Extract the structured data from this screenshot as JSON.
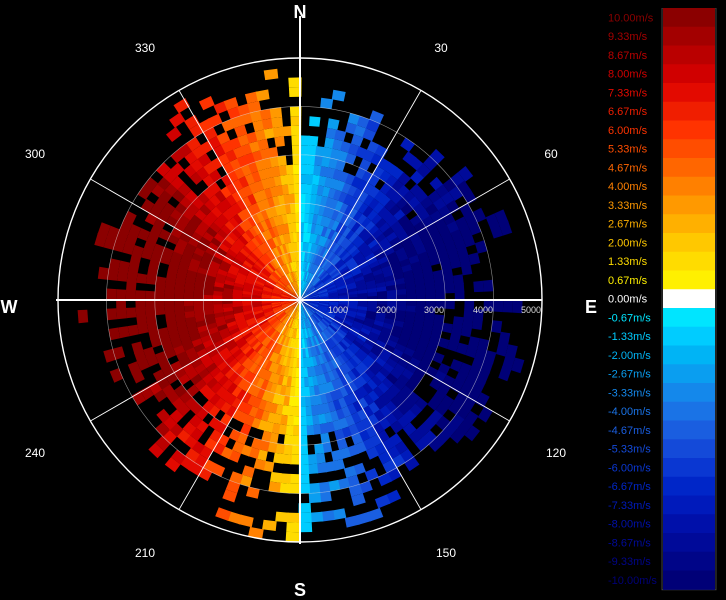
{
  "compass": {
    "north": "N",
    "east": "E",
    "south": "S",
    "west": "W"
  },
  "angle_labels": [
    "30",
    "60",
    "120",
    "150",
    "210",
    "240",
    "300",
    "330"
  ],
  "range_labels": [
    "1000",
    "2000",
    "3000",
    "4000",
    "5000"
  ],
  "chart_data": {
    "type": "polar-heatmap",
    "title": "",
    "max_range": 5000,
    "range_ticks": [
      1000,
      2000,
      3000,
      4000,
      5000
    ],
    "angle_ticks": [
      30,
      60,
      120,
      150,
      210,
      240,
      300,
      330
    ],
    "grid": true,
    "legend_position": "right",
    "value_unit": "m/s",
    "value_range": [
      -10.0,
      10.0
    ],
    "colorscale": [
      {
        "label": "10.00m/s",
        "value": 10.0,
        "color": "#8b0000"
      },
      {
        "label": "9.33m/s",
        "value": 9.33,
        "color": "#a30000"
      },
      {
        "label": "8.67m/s",
        "value": 8.67,
        "color": "#ba0000"
      },
      {
        "label": "8.00m/s",
        "value": 8.0,
        "color": "#d00000"
      },
      {
        "label": "7.33m/s",
        "value": 7.33,
        "color": "#e30a00"
      },
      {
        "label": "6.67m/s",
        "value": 6.67,
        "color": "#f01e00"
      },
      {
        "label": "6.00m/s",
        "value": 6.0,
        "color": "#ff3300"
      },
      {
        "label": "5.33m/s",
        "value": 5.33,
        "color": "#ff4d00"
      },
      {
        "label": "4.67m/s",
        "value": 4.67,
        "color": "#ff6600"
      },
      {
        "label": "4.00m/s",
        "value": 4.0,
        "color": "#ff8000"
      },
      {
        "label": "3.33m/s",
        "value": 3.33,
        "color": "#ff9900"
      },
      {
        "label": "2.67m/s",
        "value": 2.67,
        "color": "#ffb000"
      },
      {
        "label": "2.00m/s",
        "value": 2.0,
        "color": "#ffc800"
      },
      {
        "label": "1.33m/s",
        "value": 1.33,
        "color": "#ffdc00"
      },
      {
        "label": "0.67m/s",
        "value": 0.67,
        "color": "#fff000"
      },
      {
        "label": "0.00m/s",
        "value": 0.0,
        "color": "#ffffff"
      },
      {
        "label": "-0.67m/s",
        "value": -0.67,
        "color": "#00e5ff"
      },
      {
        "label": "-1.33m/s",
        "value": -1.33,
        "color": "#00ccff"
      },
      {
        "label": "-2.00m/s",
        "value": -2.0,
        "color": "#00b4f5"
      },
      {
        "label": "-2.67m/s",
        "value": -2.67,
        "color": "#0a9ef0"
      },
      {
        "label": "-3.33m/s",
        "value": -3.33,
        "color": "#1488eb"
      },
      {
        "label": "-4.00m/s",
        "value": -4.0,
        "color": "#1a73e6"
      },
      {
        "label": "-4.67m/s",
        "value": -4.67,
        "color": "#1a5ee0"
      },
      {
        "label": "-5.33m/s",
        "value": -5.33,
        "color": "#144ad9"
      },
      {
        "label": "-6.00m/s",
        "value": -6.0,
        "color": "#0a37d2"
      },
      {
        "label": "-6.67m/s",
        "value": -6.67,
        "color": "#0026c8"
      },
      {
        "label": "-7.33m/s",
        "value": -7.33,
        "color": "#001abb"
      },
      {
        "label": "-8.00m/s",
        "value": -8.0,
        "color": "#0010aa"
      },
      {
        "label": "-8.67m/s",
        "value": -8.67,
        "color": "#000a99"
      },
      {
        "label": "-9.33m/s",
        "value": -9.33,
        "color": "#000588"
      },
      {
        "label": "-10.00m/s",
        "value": -10.0,
        "color": "#000077"
      }
    ],
    "pattern": {
      "description_free": true,
      "azimuth_step_deg": 3,
      "range_step": 200,
      "west_half_sign": 1,
      "east_half_sign": -1
    }
  }
}
